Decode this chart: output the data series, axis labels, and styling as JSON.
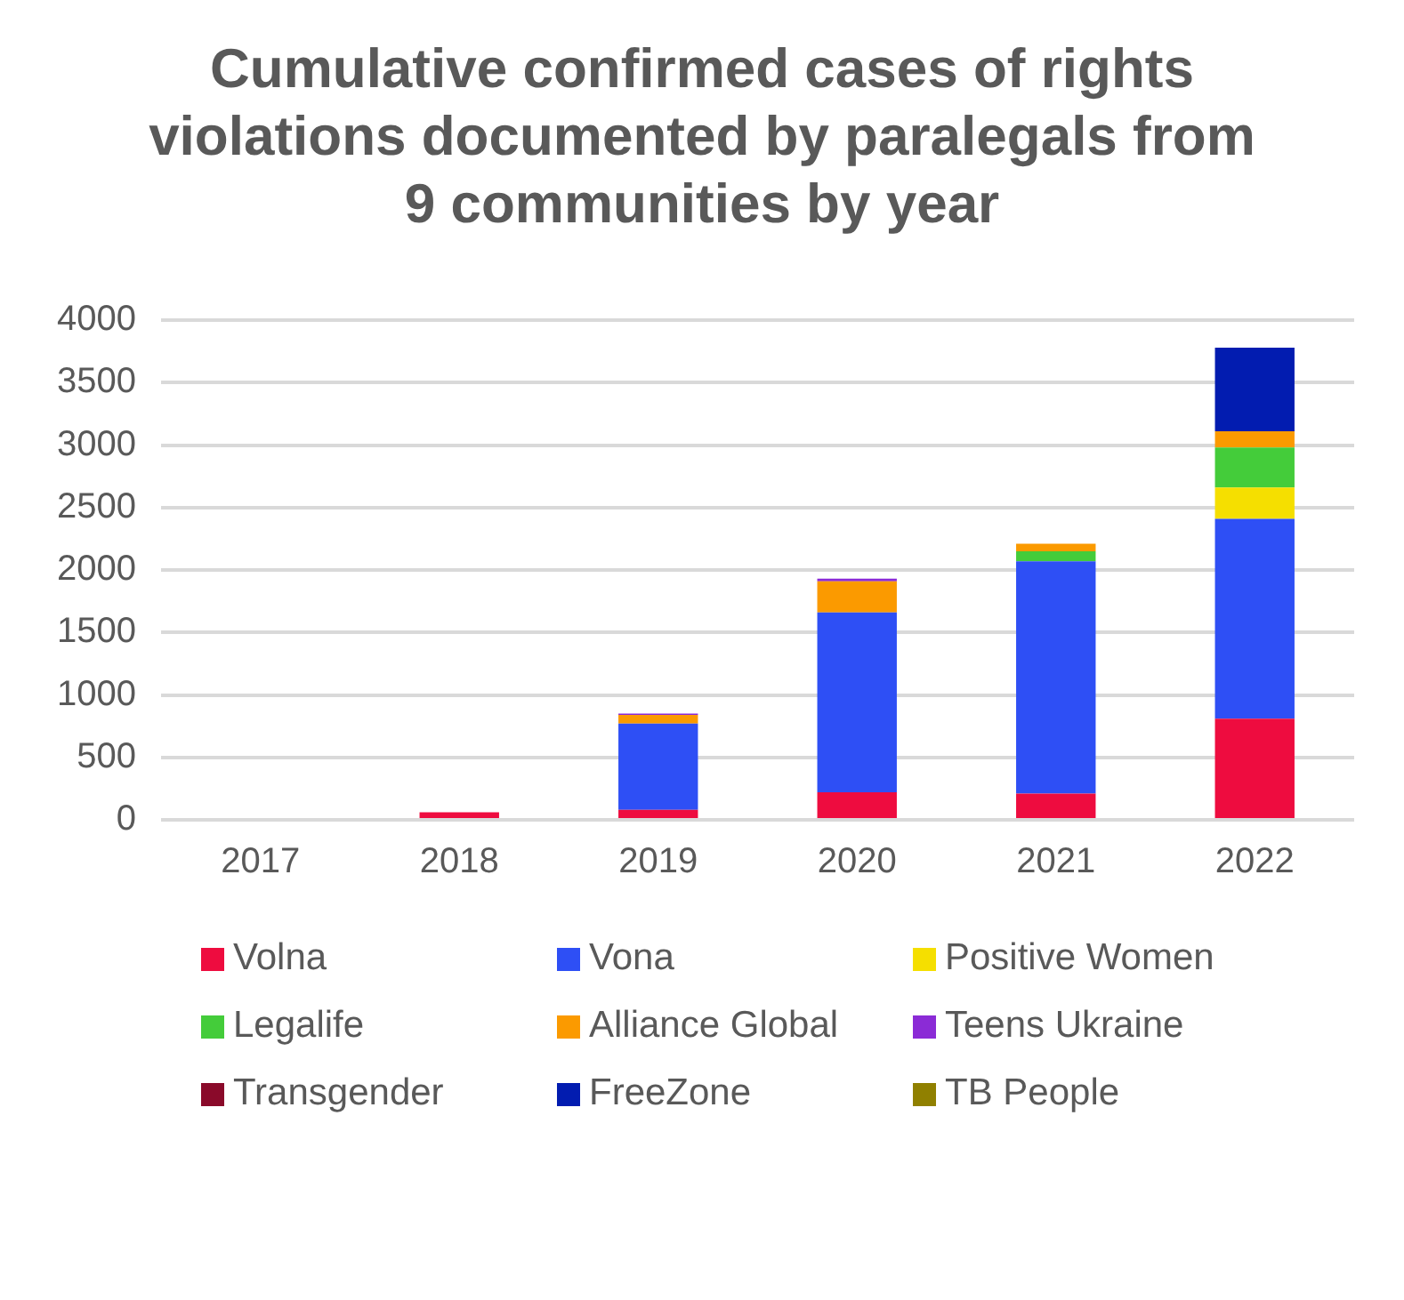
{
  "chart_data": {
    "type": "bar",
    "title": "Cumulative confirmed cases of rights violations documented by paralegals from 9 communities by year",
    "categories": [
      "2017",
      "2018",
      "2019",
      "2020",
      "2021",
      "2022"
    ],
    "stacked": true,
    "ylim": [
      0,
      4000
    ],
    "yticks": [
      0,
      500,
      1000,
      1500,
      2000,
      2500,
      3000,
      3500,
      4000
    ],
    "grid": "y",
    "legend": "bottom",
    "series": [
      {
        "name": "Volna",
        "color": "#ee0c3f",
        "values": [
          null,
          60,
          80,
          220,
          210,
          810
        ]
      },
      {
        "name": "Vona",
        "color": "#2e4ff5",
        "values": [
          null,
          null,
          690,
          1440,
          1860,
          1600
        ]
      },
      {
        "name": "Positive Women",
        "color": "#f5df00",
        "values": [
          null,
          null,
          null,
          null,
          null,
          250
        ]
      },
      {
        "name": "Legalife",
        "color": "#44cc3a",
        "values": [
          null,
          null,
          null,
          null,
          80,
          320
        ]
      },
      {
        "name": "Alliance Global",
        "color": "#fb9a00",
        "values": [
          null,
          null,
          70,
          250,
          60,
          130
        ]
      },
      {
        "name": "Teens Ukraine",
        "color": "#8b2bd6",
        "values": [
          null,
          null,
          10,
          20,
          null,
          null
        ]
      },
      {
        "name": "Transgender",
        "color": "#8a0a2a",
        "values": [
          null,
          null,
          null,
          null,
          null,
          null
        ]
      },
      {
        "name": "FreeZone",
        "color": "#021cb0",
        "values": [
          null,
          null,
          null,
          null,
          null,
          670
        ]
      },
      {
        "name": "TB People",
        "color": "#908000",
        "values": [
          null,
          null,
          null,
          null,
          null,
          null
        ]
      }
    ]
  }
}
